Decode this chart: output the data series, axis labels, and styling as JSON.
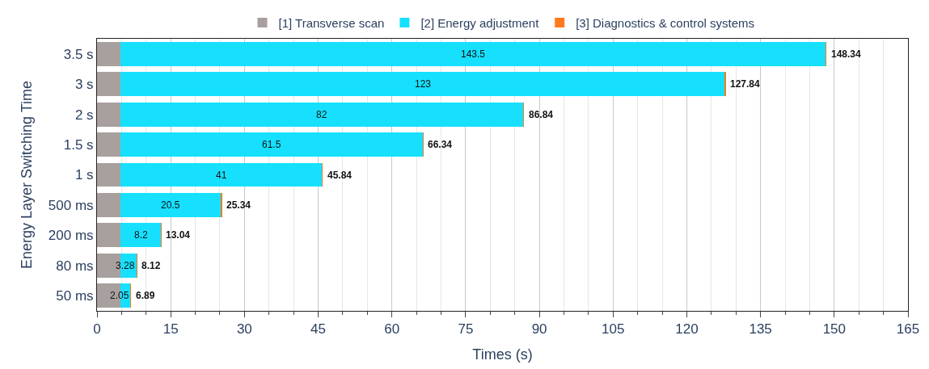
{
  "chart_data": {
    "type": "bar",
    "orientation": "horizontal",
    "stacked": true,
    "xlabel": "Times (s)",
    "ylabel": "Energy Layer Switching Time",
    "categories": [
      "3.5 s",
      "3 s",
      "2 s",
      "1.5 s",
      "1 s",
      "500 ms",
      "200 ms",
      "80 ms",
      "50 ms"
    ],
    "series": [
      {
        "name": "[1] Transverse scan",
        "color": "#a8a09e",
        "values": [
          4.8,
          4.8,
          4.8,
          4.8,
          4.8,
          4.8,
          4.8,
          4.8,
          4.8
        ]
      },
      {
        "name": "[2] Energy adjustment",
        "color": "#16e0fe",
        "values": [
          143.5,
          123,
          82,
          61.5,
          41,
          20.5,
          8.2,
          3.28,
          2.05
        ],
        "value_labels": [
          "143.5",
          "123",
          "82",
          "61.5",
          "41",
          "20.5",
          "8.2",
          "3.28",
          "2.05"
        ]
      },
      {
        "name": "[3] Diagnostics & control systems",
        "color": "#ff7a1f",
        "values": [
          0.04,
          0.04,
          0.04,
          0.04,
          0.04,
          0.04,
          0.04,
          0.04,
          0.04
        ]
      }
    ],
    "totals": [
      "148.34",
      "127.84",
      "86.84",
      "66.34",
      "45.84",
      "25.34",
      "13.04",
      "8.12",
      "6.89"
    ],
    "xlim": [
      0,
      165
    ],
    "xticks": [
      0,
      15,
      30,
      45,
      60,
      75,
      90,
      105,
      120,
      135,
      150,
      165
    ],
    "grid": "x",
    "legend": "top"
  }
}
